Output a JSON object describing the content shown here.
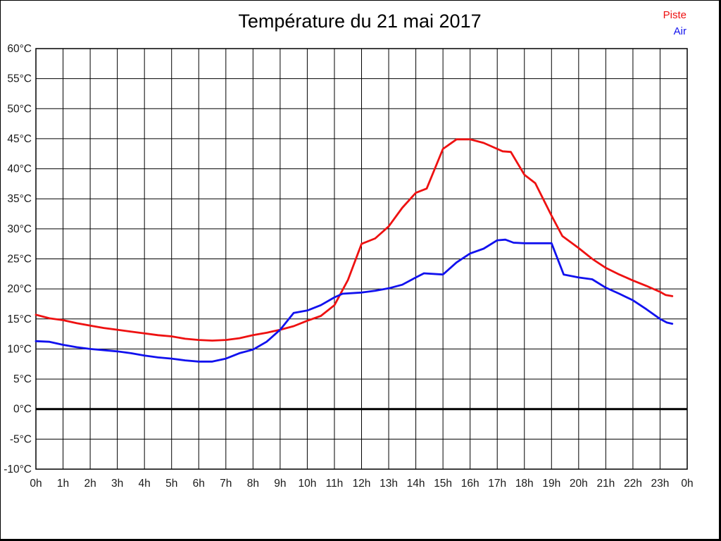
{
  "title": "Température du 21 mai 2017",
  "legend": [
    {
      "label": "Piste",
      "color": "#ee1111"
    },
    {
      "label": "Air",
      "color": "#1111ee"
    }
  ],
  "colors": {
    "grid": "#000000",
    "axis_box": "#000000",
    "zero_line": "#000000",
    "tick_text": "#1a1a1a",
    "background": "#ffffff"
  },
  "chart_data": {
    "type": "line",
    "title": "Température du 21 mai 2017",
    "xlabel": "",
    "ylabel": "",
    "xlim": [
      0,
      24
    ],
    "ylim": [
      -10,
      60
    ],
    "grid": true,
    "legend_position": "top-right",
    "x_tick_hours": [
      0,
      1,
      2,
      3,
      4,
      5,
      6,
      7,
      8,
      9,
      10,
      11,
      12,
      13,
      14,
      15,
      16,
      17,
      18,
      19,
      20,
      21,
      22,
      23,
      24
    ],
    "x_tick_labels": [
      "0h",
      "1h",
      "2h",
      "3h",
      "4h",
      "5h",
      "6h",
      "7h",
      "8h",
      "9h",
      "10h",
      "11h",
      "12h",
      "13h",
      "14h",
      "15h",
      "16h",
      "17h",
      "18h",
      "19h",
      "20h",
      "21h",
      "22h",
      "23h",
      "0h"
    ],
    "y_tick_values": [
      60,
      55,
      50,
      45,
      40,
      35,
      30,
      25,
      20,
      15,
      10,
      5,
      0,
      -5,
      -10
    ],
    "y_tick_labels": [
      "60°C",
      "55°C",
      "50°C",
      "45°C",
      "40°C",
      "35°C",
      "30°C",
      "25°C",
      "20°C",
      "15°C",
      "10°C",
      "5°C",
      "0°C",
      "-5°C",
      "-10°C"
    ],
    "zero_line": {
      "value": 0,
      "width": 3
    },
    "series": [
      {
        "name": "Piste",
        "color": "#ee1111",
        "points": [
          [
            0,
            15.7
          ],
          [
            0.5,
            15.1
          ],
          [
            1,
            14.8
          ],
          [
            1.5,
            14.3
          ],
          [
            2,
            13.9
          ],
          [
            2.5,
            13.5
          ],
          [
            3,
            13.2
          ],
          [
            3.5,
            12.9
          ],
          [
            4,
            12.6
          ],
          [
            4.5,
            12.3
          ],
          [
            5,
            12.1
          ],
          [
            5.5,
            11.7
          ],
          [
            6,
            11.5
          ],
          [
            6.5,
            11.4
          ],
          [
            7,
            11.5
          ],
          [
            7.5,
            11.8
          ],
          [
            8,
            12.3
          ],
          [
            8.5,
            12.7
          ],
          [
            9,
            13.2
          ],
          [
            9.5,
            13.8
          ],
          [
            10,
            14.7
          ],
          [
            10.5,
            15.5
          ],
          [
            11,
            17.3
          ],
          [
            11.5,
            21.5
          ],
          [
            12,
            27.5
          ],
          [
            12.5,
            28.4
          ],
          [
            13,
            30.4
          ],
          [
            13.5,
            33.5
          ],
          [
            14,
            36.0
          ],
          [
            14.4,
            36.7
          ],
          [
            15,
            43.3
          ],
          [
            15.5,
            44.9
          ],
          [
            16,
            44.9
          ],
          [
            16.5,
            44.3
          ],
          [
            17,
            43.3
          ],
          [
            17.2,
            42.9
          ],
          [
            17.5,
            42.8
          ],
          [
            18,
            39.0
          ],
          [
            18.4,
            37.6
          ],
          [
            19,
            32.2
          ],
          [
            19.4,
            28.8
          ],
          [
            20,
            26.8
          ],
          [
            20.5,
            25.0
          ],
          [
            21,
            23.5
          ],
          [
            21.5,
            22.4
          ],
          [
            22,
            21.4
          ],
          [
            22.5,
            20.5
          ],
          [
            23,
            19.5
          ],
          [
            23.2,
            19.0
          ],
          [
            23.45,
            18.8
          ]
        ]
      },
      {
        "name": "Air",
        "color": "#1111ee",
        "points": [
          [
            0,
            11.3
          ],
          [
            0.5,
            11.2
          ],
          [
            1,
            10.7
          ],
          [
            1.5,
            10.3
          ],
          [
            2,
            10.0
          ],
          [
            2.5,
            9.8
          ],
          [
            3,
            9.6
          ],
          [
            3.5,
            9.3
          ],
          [
            4,
            8.9
          ],
          [
            4.5,
            8.6
          ],
          [
            5,
            8.4
          ],
          [
            5.5,
            8.1
          ],
          [
            6,
            7.9
          ],
          [
            6.5,
            7.9
          ],
          [
            7,
            8.4
          ],
          [
            7.5,
            9.3
          ],
          [
            8,
            9.9
          ],
          [
            8.5,
            11.2
          ],
          [
            9,
            13.2
          ],
          [
            9.5,
            16.0
          ],
          [
            10,
            16.4
          ],
          [
            10.5,
            17.3
          ],
          [
            11,
            18.6
          ],
          [
            11.3,
            19.2
          ],
          [
            12,
            19.4
          ],
          [
            12.5,
            19.7
          ],
          [
            13,
            20.1
          ],
          [
            13.5,
            20.7
          ],
          [
            14,
            21.9
          ],
          [
            14.3,
            22.6
          ],
          [
            15,
            22.4
          ],
          [
            15.5,
            24.4
          ],
          [
            16,
            25.9
          ],
          [
            16.5,
            26.7
          ],
          [
            17,
            28.1
          ],
          [
            17.3,
            28.2
          ],
          [
            17.6,
            27.7
          ],
          [
            18,
            27.6
          ],
          [
            19,
            27.6
          ],
          [
            19.45,
            22.4
          ],
          [
            20,
            21.9
          ],
          [
            20.5,
            21.6
          ],
          [
            21,
            20.2
          ],
          [
            21.5,
            19.2
          ],
          [
            22,
            18.1
          ],
          [
            22.5,
            16.6
          ],
          [
            23,
            15.0
          ],
          [
            23.25,
            14.4
          ],
          [
            23.45,
            14.2
          ]
        ]
      }
    ]
  }
}
